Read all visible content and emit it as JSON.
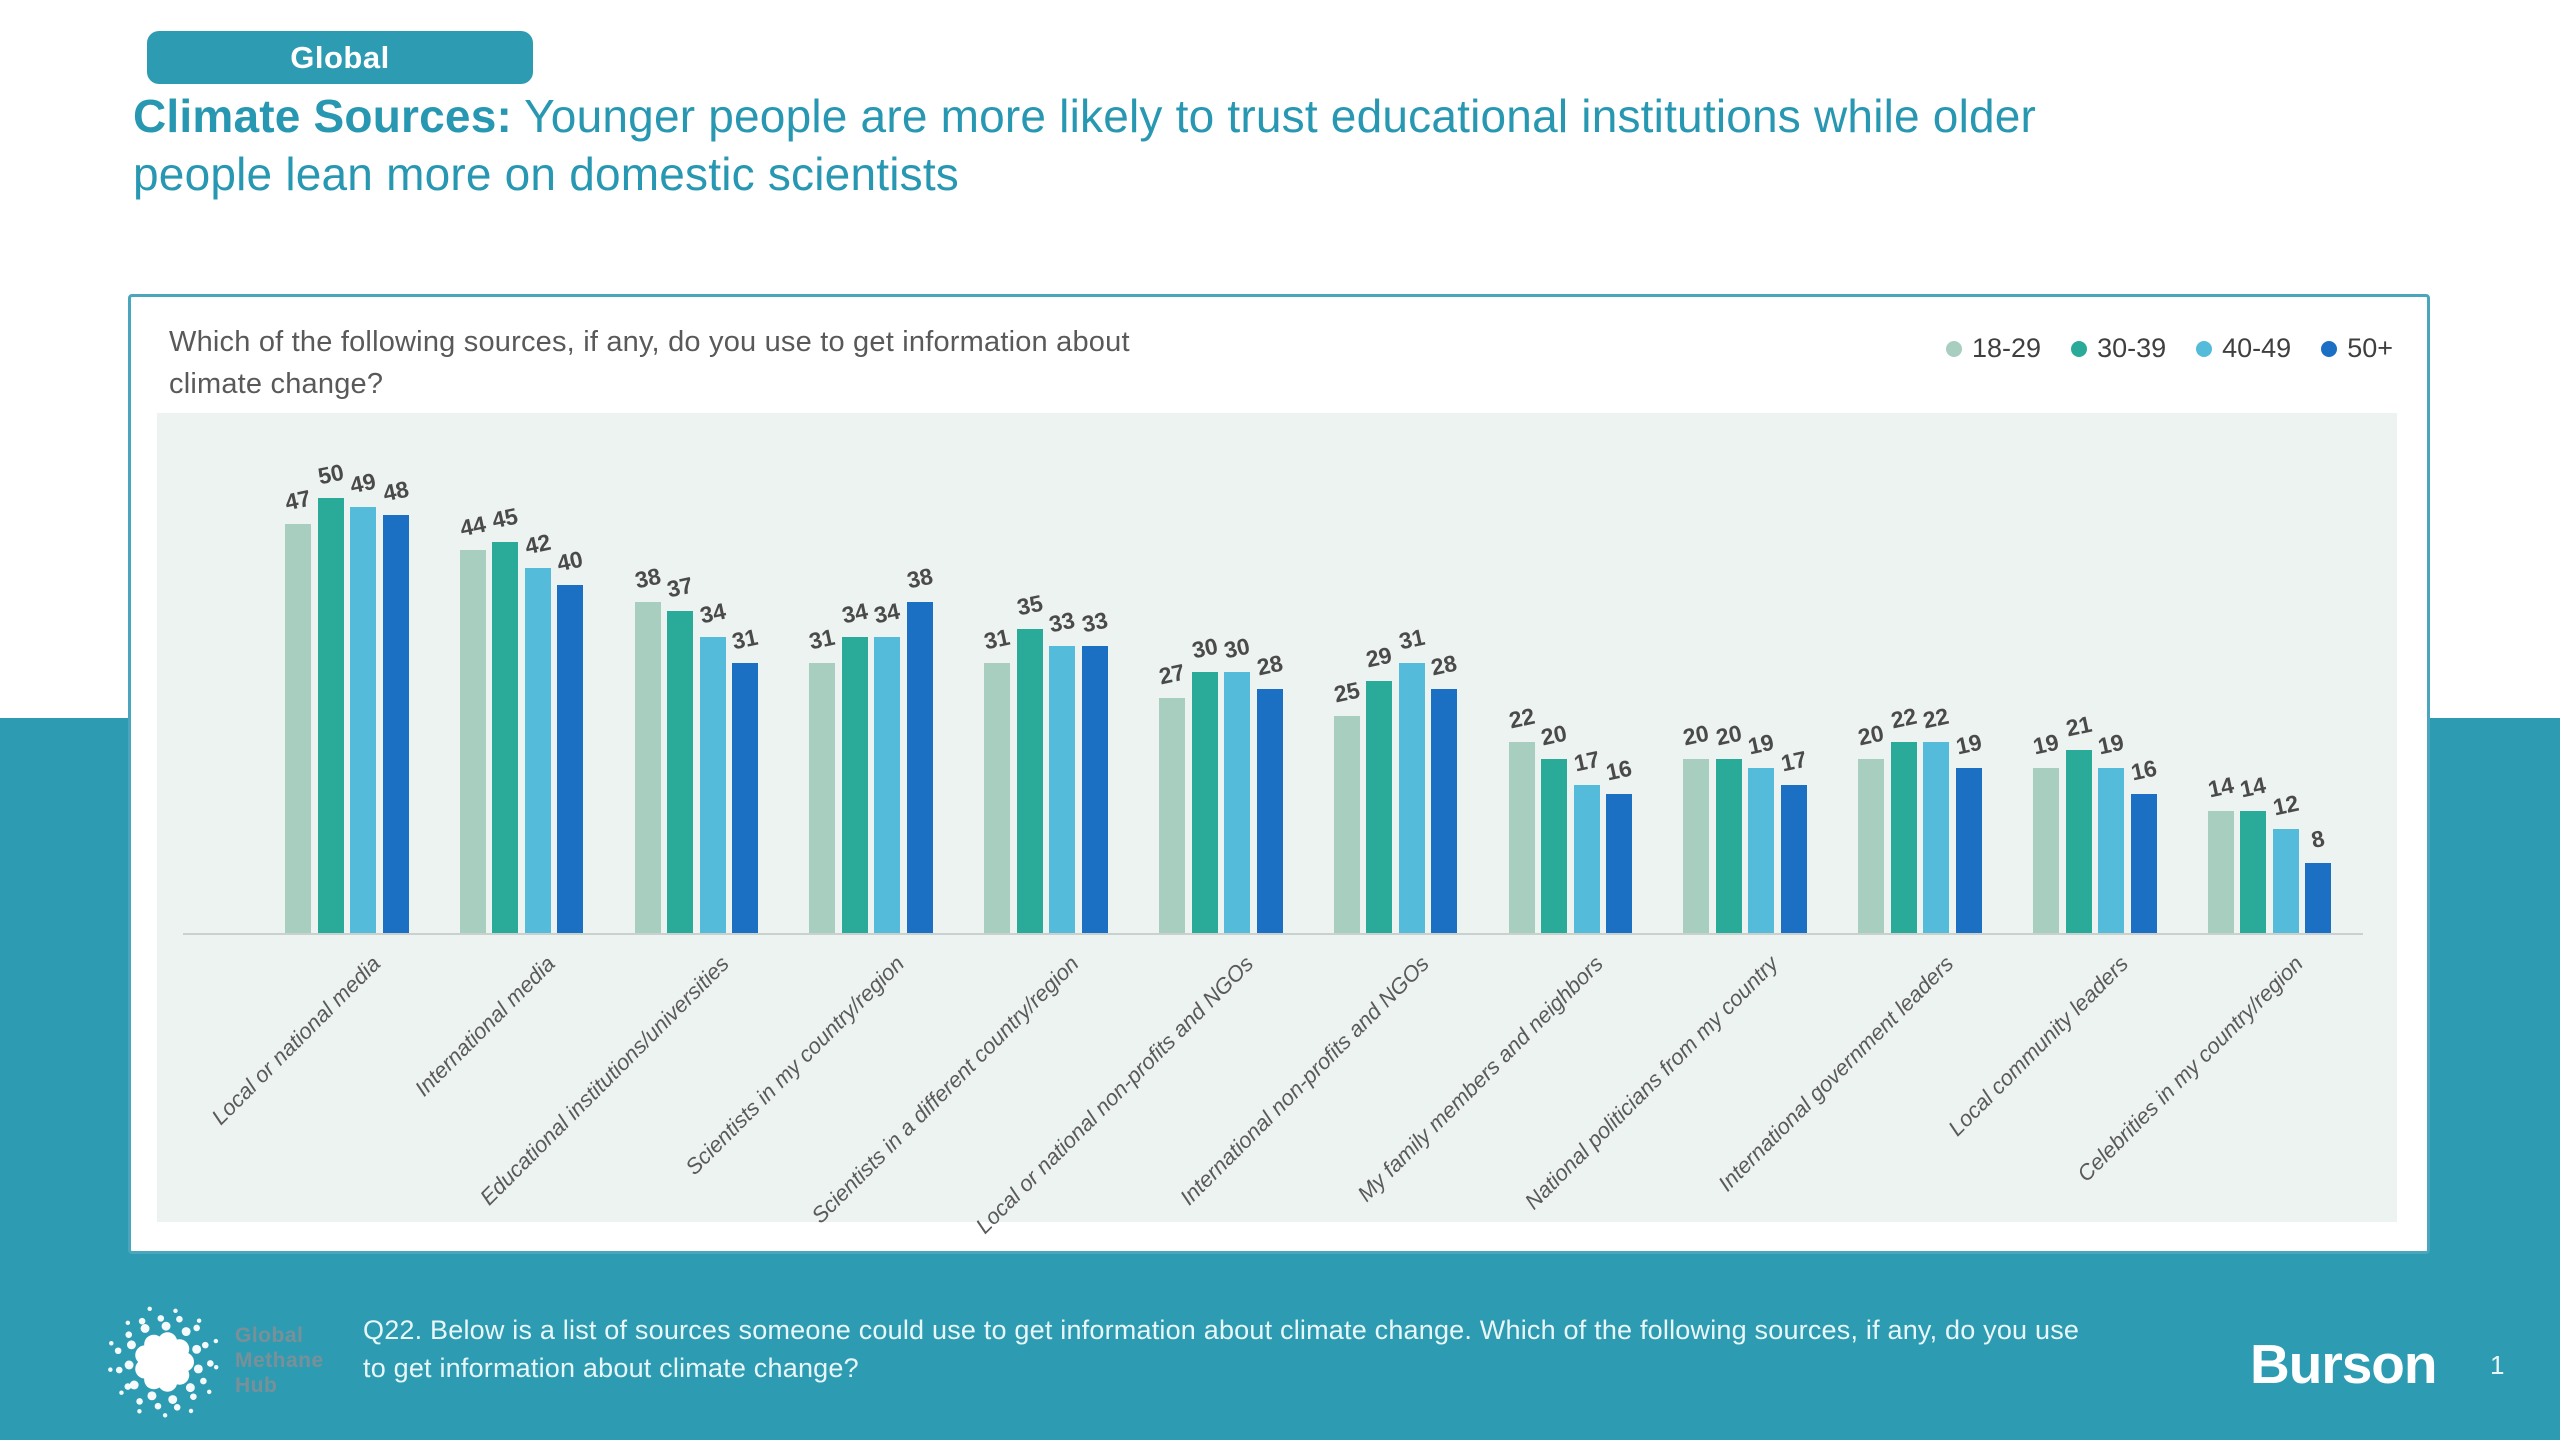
{
  "page": {
    "badge": "Global",
    "title_bold": "Climate Sources:",
    "title_rest": " Younger people are more likely to trust educational institutions while older people lean more on domestic scientists"
  },
  "colors": {
    "accent_teal": "#2D9CB3",
    "title_teal": "#2898B2",
    "card_border": "#4AA6BC",
    "plot_background": "#EDF3F1",
    "axis_line": "#C9D1CE",
    "series": [
      "#A8CEC0",
      "#2AAB9A",
      "#54BBDA",
      "#1B70C3"
    ]
  },
  "chart_data": {
    "type": "bar",
    "title": "Which of the following sources, if any, do you use to get information about climate change?",
    "categories": [
      "Local or national media",
      "International media",
      "Educational institutions/universities",
      "Scientists in my country/region",
      "Scientists in a different country/region",
      "Local or national non-profits and NGOs",
      "International non-profits and NGOs",
      "My family members and neighbors",
      "National politicians from my country",
      "International government leaders",
      "Local community leaders",
      "Celebrities in my country/region"
    ],
    "series": [
      {
        "name": "18-29",
        "values": [
          47,
          44,
          38,
          31,
          31,
          27,
          25,
          22,
          20,
          20,
          19,
          14
        ]
      },
      {
        "name": "30-39",
        "values": [
          50,
          45,
          37,
          34,
          35,
          30,
          29,
          20,
          20,
          22,
          21,
          14
        ]
      },
      {
        "name": "40-49",
        "values": [
          49,
          42,
          34,
          34,
          33,
          30,
          31,
          17,
          19,
          22,
          19,
          12
        ]
      },
      {
        "name": "50+",
        "values": [
          48,
          40,
          31,
          38,
          33,
          28,
          28,
          16,
          17,
          19,
          16,
          8
        ]
      }
    ],
    "ylim": [
      0,
      55
    ],
    "grid": false,
    "legend_position": "top-right",
    "value_labels": true,
    "xlabel": "",
    "ylabel": ""
  },
  "footer": {
    "logo_lines": [
      "Global",
      "Methane",
      "Hub"
    ],
    "note_line1": "Q22. Below is a list of sources someone could use to get information about climate change. Which of the following sources, if any, do you use",
    "note_line2": "to get information about climate change?",
    "brand": "Burson",
    "page_number": "1"
  }
}
